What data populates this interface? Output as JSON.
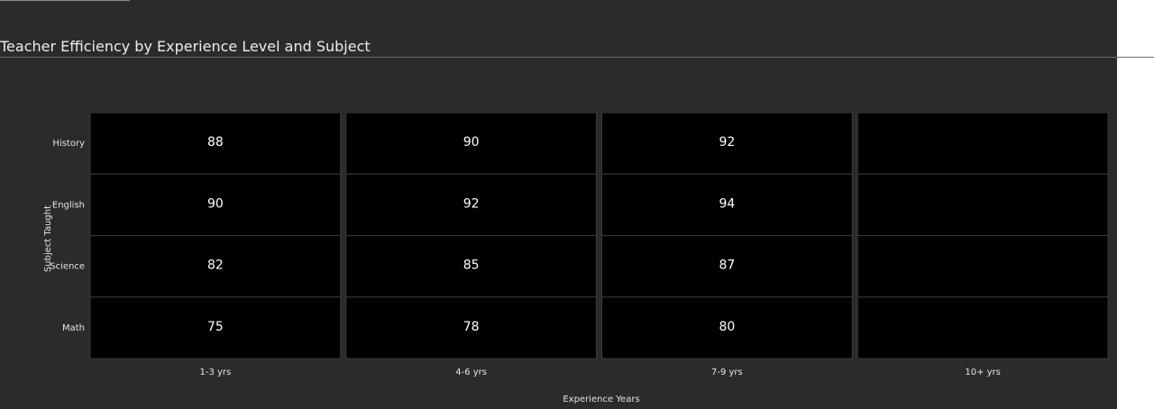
{
  "chart_data": {
    "type": "heatmap",
    "title": "Teacher Efficiency by Experience Level and Subject",
    "xlabel": "Experience Years",
    "ylabel": "Subject Taught",
    "x_categories": [
      "1-3 yrs",
      "4-6 yrs",
      "7-9 yrs",
      "10+ yrs"
    ],
    "y_categories": [
      "History",
      "English",
      "Science",
      "Math"
    ],
    "values": [
      [
        88,
        90,
        92,
        null
      ],
      [
        90,
        92,
        94,
        null
      ],
      [
        82,
        85,
        87,
        null
      ],
      [
        75,
        78,
        80,
        null
      ]
    ],
    "cell_color": "#000000",
    "grid_color": "#3a3a3a",
    "text_color": "#ffffff"
  }
}
